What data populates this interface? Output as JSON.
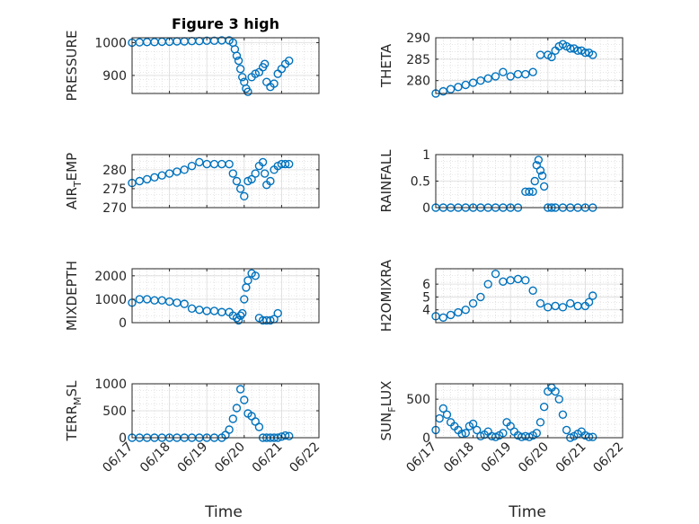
{
  "figure": {
    "title": "Figure 3 high",
    "marker_color": "#0072bd"
  },
  "chart_data": [
    {
      "type": "scatter",
      "panel": "pressure",
      "title": "Figure 3 high",
      "ylabel": "PRESSURE",
      "ylabel_sub": "",
      "ylim": [
        845,
        1015
      ],
      "yticks": [
        900,
        1000
      ],
      "ytick_labels": [
        "900",
        "1000"
      ],
      "xlim": [
        0,
        5
      ],
      "x": [
        0,
        0.2,
        0.4,
        0.6,
        0.8,
        1.0,
        1.2,
        1.4,
        1.6,
        1.8,
        2.0,
        2.2,
        2.4,
        2.6,
        2.7,
        2.75,
        2.8,
        2.85,
        2.9,
        2.95,
        3.0,
        3.05,
        3.1,
        3.2,
        3.3,
        3.4,
        3.5,
        3.55,
        3.6,
        3.7,
        3.8,
        3.9,
        4.0,
        4.1,
        4.2
      ],
      "y": [
        1000,
        1001,
        1002,
        1002,
        1003,
        1003,
        1004,
        1004,
        1005,
        1005,
        1006,
        1006,
        1007,
        1007,
        1000,
        980,
        960,
        945,
        920,
        895,
        880,
        860,
        850,
        895,
        905,
        910,
        925,
        935,
        880,
        865,
        875,
        905,
        920,
        935,
        945
      ]
    },
    {
      "type": "scatter",
      "panel": "theta",
      "ylabel": "THETA",
      "ylabel_sub": "",
      "ylim": [
        277,
        290
      ],
      "yticks": [
        280,
        285,
        290
      ],
      "ytick_labels": [
        "280",
        "285",
        "290"
      ],
      "xlim": [
        0,
        5
      ],
      "x": [
        0,
        0.2,
        0.4,
        0.6,
        0.8,
        1.0,
        1.2,
        1.4,
        1.6,
        1.8,
        2.0,
        2.2,
        2.4,
        2.6,
        2.8,
        3.0,
        3.1,
        3.2,
        3.3,
        3.4,
        3.5,
        3.6,
        3.7,
        3.8,
        3.9,
        4.0,
        4.1,
        4.2
      ],
      "y": [
        277,
        277.5,
        278,
        278.5,
        279,
        279.5,
        280,
        280.5,
        281,
        282,
        281,
        281.5,
        281.5,
        282,
        286,
        286,
        285.5,
        287,
        288,
        288.5,
        288,
        287.5,
        287.5,
        287,
        287,
        286.5,
        286.5,
        286
      ]
    },
    {
      "type": "scatter",
      "panel": "air_temp",
      "ylabel": "AIR",
      "ylabel_sub": "T",
      "ylabel_rest": "EMP",
      "ylim": [
        270,
        284
      ],
      "yticks": [
        270,
        275,
        280
      ],
      "ytick_labels": [
        "270",
        "275",
        "280"
      ],
      "xlim": [
        0,
        5
      ],
      "x": [
        0,
        0.2,
        0.4,
        0.6,
        0.8,
        1.0,
        1.2,
        1.4,
        1.6,
        1.8,
        2.0,
        2.2,
        2.4,
        2.6,
        2.7,
        2.8,
        2.9,
        3.0,
        3.1,
        3.2,
        3.3,
        3.4,
        3.5,
        3.55,
        3.6,
        3.7,
        3.8,
        3.9,
        4.0,
        4.1,
        4.2
      ],
      "y": [
        276.5,
        277,
        277.5,
        278,
        278.5,
        279,
        279.5,
        280,
        281,
        282,
        281.5,
        281.5,
        281.5,
        281.5,
        279,
        277,
        275,
        273,
        277,
        277.5,
        279,
        281,
        282,
        279,
        276,
        277,
        280,
        281,
        281.5,
        281.5,
        281.5
      ]
    },
    {
      "type": "scatter",
      "panel": "rainfall",
      "ylabel": "RAINFALL",
      "ylabel_sub": "",
      "ylim": [
        0,
        1
      ],
      "yticks": [
        0,
        0.5,
        1
      ],
      "ytick_labels": [
        "0",
        "0.5",
        "1"
      ],
      "xlim": [
        0,
        5
      ],
      "x": [
        0,
        0.2,
        0.4,
        0.6,
        0.8,
        1.0,
        1.2,
        1.4,
        1.6,
        1.8,
        2.0,
        2.2,
        2.4,
        2.5,
        2.6,
        2.65,
        2.7,
        2.75,
        2.8,
        2.85,
        2.9,
        3.0,
        3.1,
        3.2,
        3.4,
        3.6,
        3.8,
        4.0,
        4.2
      ],
      "y": [
        0,
        0,
        0,
        0,
        0,
        0,
        0,
        0,
        0,
        0,
        0,
        0,
        0.3,
        0.3,
        0.3,
        0.5,
        0.8,
        0.9,
        0.7,
        0.6,
        0.4,
        0,
        0,
        0,
        0,
        0,
        0,
        0,
        0
      ]
    },
    {
      "type": "scatter",
      "panel": "mixdepth",
      "ylabel": "MIXDEPTH",
      "ylabel_sub": "",
      "ylim": [
        0,
        2300
      ],
      "yticks": [
        0,
        1000,
        2000
      ],
      "ytick_labels": [
        "0",
        "1000",
        "2000"
      ],
      "xlim": [
        0,
        5
      ],
      "x": [
        0,
        0.2,
        0.4,
        0.6,
        0.8,
        1.0,
        1.2,
        1.4,
        1.6,
        1.8,
        2.0,
        2.2,
        2.4,
        2.6,
        2.7,
        2.8,
        2.85,
        2.9,
        2.95,
        3.0,
        3.05,
        3.1,
        3.2,
        3.3,
        3.4,
        3.5,
        3.6,
        3.7,
        3.8,
        3.9
      ],
      "y": [
        850,
        1000,
        1000,
        950,
        950,
        900,
        850,
        800,
        600,
        550,
        500,
        500,
        450,
        450,
        300,
        200,
        100,
        300,
        400,
        1000,
        1500,
        1800,
        2100,
        2000,
        200,
        100,
        100,
        100,
        150,
        400
      ]
    },
    {
      "type": "scatter",
      "panel": "h2omixra",
      "ylabel": "H2OMIXRA",
      "ylabel_sub": "",
      "ylim": [
        3,
        7.2
      ],
      "yticks": [
        4,
        5,
        6
      ],
      "ytick_labels": [
        "4",
        "5",
        "6"
      ],
      "xlim": [
        0,
        5
      ],
      "x": [
        0,
        0.2,
        0.4,
        0.6,
        0.8,
        1.0,
        1.2,
        1.4,
        1.6,
        1.8,
        2.0,
        2.2,
        2.4,
        2.6,
        2.8,
        3.0,
        3.2,
        3.4,
        3.6,
        3.8,
        4.0,
        4.1,
        4.2
      ],
      "y": [
        3.5,
        3.4,
        3.6,
        3.8,
        4.0,
        4.5,
        5.0,
        6.0,
        6.8,
        6.2,
        6.3,
        6.4,
        6.3,
        5.5,
        4.5,
        4.2,
        4.3,
        4.2,
        4.5,
        4.3,
        4.3,
        4.6,
        5.1
      ]
    },
    {
      "type": "scatter",
      "panel": "terr_msl",
      "ylabel": "TERR",
      "ylabel_sub": "M",
      "ylabel_rest": "SL",
      "ylim": [
        0,
        1000
      ],
      "yticks": [
        0,
        500,
        1000
      ],
      "ytick_labels": [
        "0",
        "500",
        "1000"
      ],
      "xlim": [
        0,
        5
      ],
      "x": [
        0,
        0.2,
        0.4,
        0.6,
        0.8,
        1.0,
        1.2,
        1.4,
        1.6,
        1.8,
        2.0,
        2.2,
        2.4,
        2.5,
        2.6,
        2.7,
        2.8,
        2.9,
        3.0,
        3.1,
        3.2,
        3.3,
        3.4,
        3.5,
        3.6,
        3.7,
        3.8,
        3.9,
        4.0,
        4.1,
        4.2
      ],
      "y": [
        0,
        0,
        0,
        0,
        0,
        0,
        0,
        0,
        0,
        0,
        0,
        0,
        0,
        50,
        150,
        350,
        550,
        900,
        700,
        450,
        400,
        300,
        200,
        0,
        0,
        0,
        0,
        0,
        20,
        40,
        30
      ]
    },
    {
      "type": "scatter",
      "panel": "sun_flux",
      "ylabel": "SUN",
      "ylabel_sub": "F",
      "ylabel_rest": "LUX",
      "ylim": [
        0,
        700
      ],
      "yticks": [
        0,
        500
      ],
      "ytick_labels": [
        "0",
        "500"
      ],
      "xlim": [
        0,
        5
      ],
      "x": [
        0,
        0.1,
        0.2,
        0.3,
        0.4,
        0.5,
        0.6,
        0.7,
        0.8,
        0.9,
        1.0,
        1.1,
        1.2,
        1.3,
        1.4,
        1.5,
        1.6,
        1.7,
        1.8,
        1.9,
        2.0,
        2.1,
        2.2,
        2.3,
        2.4,
        2.5,
        2.6,
        2.7,
        2.8,
        2.9,
        3.0,
        3.1,
        3.2,
        3.3,
        3.4,
        3.5,
        3.6,
        3.7,
        3.8,
        3.9,
        4.0,
        4.1,
        4.2
      ],
      "y": [
        100,
        250,
        380,
        300,
        200,
        150,
        100,
        50,
        60,
        150,
        180,
        100,
        20,
        40,
        80,
        20,
        10,
        30,
        60,
        200,
        150,
        80,
        30,
        10,
        20,
        10,
        30,
        60,
        200,
        400,
        600,
        650,
        600,
        500,
        300,
        100,
        0,
        20,
        50,
        80,
        30,
        10,
        10
      ]
    }
  ],
  "xaxis": {
    "label": "Time",
    "tick_labels": [
      "06/17",
      "06/18",
      "06/19",
      "06/20",
      "06/21",
      "06/22"
    ]
  }
}
